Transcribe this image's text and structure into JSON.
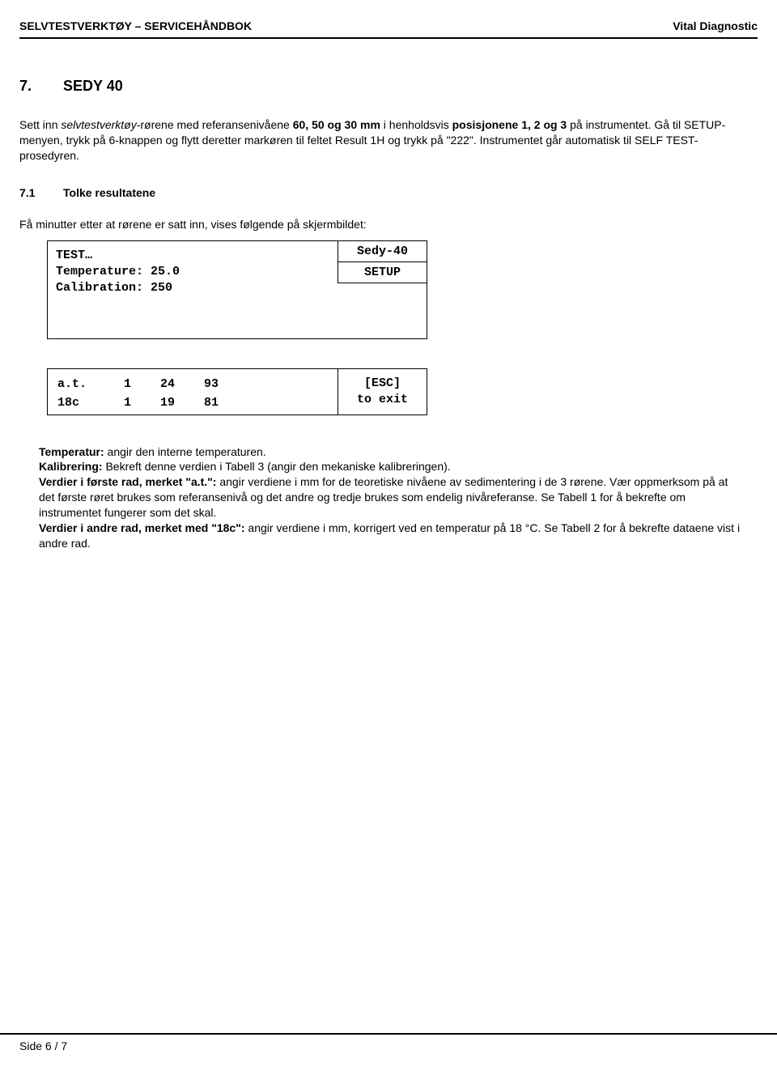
{
  "header": {
    "left": "SELVTESTVERKTØY – SERVICEHÅNDBOK",
    "right": "Vital Diagnostic"
  },
  "section": {
    "number": "7.",
    "title": "SEDY 40"
  },
  "intro": {
    "line1_pre": "Sett inn ",
    "line1_italic": "selvtestverktøy",
    "line1_mid": "-rørene med referansenivåene ",
    "line1_bold1": "60, 50 og 30 mm",
    "line1_mid2": " i henholdsvis ",
    "line1_bold2": "posisjonene 1, 2 og 3",
    "line1_end": " på instrumentet. Gå til SETUP-menyen, trykk på 6-knappen og flytt deretter markøren til feltet Result 1H og trykk på \"222\". Instrumentet går automatisk til SELF TEST-prosedyren."
  },
  "subsection": {
    "number": "7.1",
    "title": "Tolke resultatene",
    "lead": "Få minutter etter at rørene er satt inn, vises følgende på skjermbildet:"
  },
  "display": {
    "top": {
      "line1": "TEST…",
      "line2": "Temperature: 25.0",
      "line3": "Calibration: 250",
      "tag1": "Sedy-40",
      "tag2": "SETUP"
    },
    "bottom": {
      "rows": [
        {
          "label": "a.t.",
          "c1": "1",
          "c2": "24",
          "c3": "93"
        },
        {
          "label": "18c",
          "c1": "1",
          "c2": "19",
          "c3": "81"
        }
      ],
      "esc1": "[ESC]",
      "esc2": "to exit"
    }
  },
  "explain": {
    "p1_bold": "Temperatur:",
    "p1_rest": " angir den interne temperaturen.",
    "p2_bold": "Kalibrering:",
    "p2_rest": " Bekreft denne verdien i Tabell 3 (angir den mekaniske kalibreringen).",
    "p3_bold": "Verdier i første rad, merket \"a.t.\":",
    "p3_rest": " angir verdiene i mm for de teoretiske nivåene av sedimentering i de 3 rørene. Vær oppmerksom på at det første røret brukes som referansenivå og det andre og tredje brukes som endelig nivåreferanse. Se Tabell 1 for å bekrefte om instrumentet fungerer som det skal.",
    "p4_bold": "Verdier i andre rad, merket med \"18c\":",
    "p4_rest": " angir verdiene i mm, korrigert ved en temperatur på 18 °C. Se Tabell 2 for å bekrefte dataene vist i andre rad."
  },
  "footer": {
    "text": "Side 6 / 7"
  }
}
